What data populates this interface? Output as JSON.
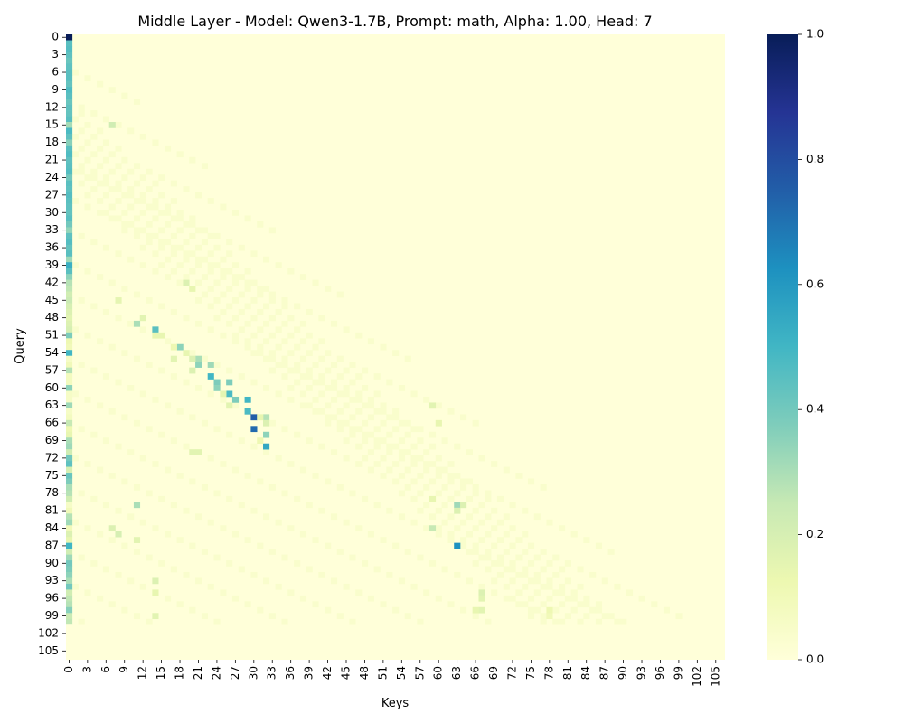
{
  "chart_data": {
    "type": "heatmap",
    "title": "Middle Layer - Model: Qwen3-1.7B, Prompt: math, Alpha: 1.00, Head: 7",
    "xlabel": "Keys",
    "ylabel": "Query",
    "rows": 107,
    "cols": 107,
    "x_tick_labels": [
      "0",
      "3",
      "6",
      "9",
      "12",
      "15",
      "18",
      "21",
      "24",
      "27",
      "30",
      "33",
      "36",
      "39",
      "42",
      "45",
      "48",
      "51",
      "54",
      "57",
      "60",
      "63",
      "66",
      "69",
      "72",
      "75",
      "78",
      "81",
      "84",
      "87",
      "90",
      "93",
      "96",
      "99",
      "102",
      "105"
    ],
    "y_tick_labels": [
      "0",
      "3",
      "6",
      "9",
      "12",
      "15",
      "18",
      "21",
      "24",
      "27",
      "30",
      "33",
      "36",
      "39",
      "42",
      "45",
      "48",
      "51",
      "54",
      "57",
      "60",
      "63",
      "66",
      "69",
      "72",
      "75",
      "78",
      "81",
      "84",
      "87",
      "90",
      "93",
      "96",
      "99",
      "102",
      "105"
    ],
    "colorbar": {
      "vmin": 0.0,
      "vmax": 1.0,
      "tick_labels": [
        "0.0",
        "0.2",
        "0.4",
        "0.6",
        "0.8",
        "1.0"
      ],
      "colormap": "YlGnBu",
      "color_stops": [
        "#ffffd9",
        "#edf8b1",
        "#c7e9b4",
        "#7fcdbb",
        "#41b6c4",
        "#1d91c0",
        "#225ea8",
        "#253494",
        "#081d58"
      ]
    },
    "column0_values": [
      1.0,
      0.45,
      0.46,
      0.44,
      0.42,
      0.44,
      0.45,
      0.45,
      0.43,
      0.47,
      0.45,
      0.42,
      0.44,
      0.43,
      0.45,
      0.31,
      0.48,
      0.44,
      0.36,
      0.45,
      0.47,
      0.44,
      0.45,
      0.46,
      0.4,
      0.45,
      0.44,
      0.46,
      0.45,
      0.44,
      0.43,
      0.45,
      0.4,
      0.34,
      0.44,
      0.46,
      0.43,
      0.45,
      0.32,
      0.52,
      0.45,
      0.35,
      0.28,
      0.26,
      0.22,
      0.24,
      0.2,
      0.18,
      0.16,
      0.18,
      0.2,
      0.38,
      0.12,
      0.1,
      0.5,
      0.06,
      0.1,
      0.28,
      0.08,
      0.08,
      0.35,
      0.06,
      0.06,
      0.32,
      0.06,
      0.08,
      0.25,
      0.12,
      0.14,
      0.3,
      0.32,
      0.22,
      0.4,
      0.44,
      0.2,
      0.42,
      0.38,
      0.3,
      0.28,
      0.22,
      0.06,
      0.1,
      0.28,
      0.32,
      0.1,
      0.18,
      0.14,
      0.5,
      0.22,
      0.32,
      0.4,
      0.38,
      0.35,
      0.3,
      0.4,
      0.22,
      0.26,
      0.28,
      0.36,
      0.24,
      0.26,
      0.0,
      0.0,
      0.0,
      0.0,
      0.0,
      0.0
    ],
    "highlighted_cells": [
      {
        "query": 49,
        "key": 11,
        "value": 0.3
      },
      {
        "query": 50,
        "key": 14,
        "value": 0.45
      },
      {
        "query": 53,
        "key": 18,
        "value": 0.35
      },
      {
        "query": 55,
        "key": 21,
        "value": 0.3
      },
      {
        "query": 56,
        "key": 21,
        "value": 0.35
      },
      {
        "query": 56,
        "key": 23,
        "value": 0.32
      },
      {
        "query": 58,
        "key": 23,
        "value": 0.5
      },
      {
        "query": 59,
        "key": 24,
        "value": 0.38
      },
      {
        "query": 59,
        "key": 26,
        "value": 0.38
      },
      {
        "query": 60,
        "key": 24,
        "value": 0.35
      },
      {
        "query": 61,
        "key": 26,
        "value": 0.48
      },
      {
        "query": 62,
        "key": 27,
        "value": 0.38
      },
      {
        "query": 62,
        "key": 29,
        "value": 0.5
      },
      {
        "query": 64,
        "key": 29,
        "value": 0.48
      },
      {
        "query": 65,
        "key": 30,
        "value": 0.75
      },
      {
        "query": 65,
        "key": 32,
        "value": 0.28
      },
      {
        "query": 67,
        "key": 30,
        "value": 0.72
      },
      {
        "query": 68,
        "key": 32,
        "value": 0.35
      },
      {
        "query": 70,
        "key": 32,
        "value": 0.55
      },
      {
        "query": 80,
        "key": 11,
        "value": 0.3
      },
      {
        "query": 80,
        "key": 63,
        "value": 0.32
      },
      {
        "query": 84,
        "key": 59,
        "value": 0.25
      },
      {
        "query": 87,
        "key": 63,
        "value": 0.62
      },
      {
        "query": 15,
        "key": 7,
        "value": 0.22
      },
      {
        "query": 85,
        "key": 8,
        "value": 0.2
      },
      {
        "query": 84,
        "key": 7,
        "value": 0.18
      },
      {
        "query": 42,
        "key": 19,
        "value": 0.18
      },
      {
        "query": 43,
        "key": 20,
        "value": 0.14
      },
      {
        "query": 45,
        "key": 8,
        "value": 0.15
      },
      {
        "query": 48,
        "key": 12,
        "value": 0.16
      },
      {
        "query": 51,
        "key": 14,
        "value": 0.14
      },
      {
        "query": 51,
        "key": 15,
        "value": 0.14
      },
      {
        "query": 53,
        "key": 17,
        "value": 0.12
      },
      {
        "query": 54,
        "key": 19,
        "value": 0.14
      },
      {
        "query": 55,
        "key": 17,
        "value": 0.16
      },
      {
        "query": 55,
        "key": 20,
        "value": 0.18
      },
      {
        "query": 57,
        "key": 20,
        "value": 0.18
      },
      {
        "query": 61,
        "key": 25,
        "value": 0.15
      },
      {
        "query": 63,
        "key": 26,
        "value": 0.16
      },
      {
        "query": 65,
        "key": 31,
        "value": 0.14
      },
      {
        "query": 66,
        "key": 32,
        "value": 0.18
      },
      {
        "query": 69,
        "key": 31,
        "value": 0.12
      },
      {
        "query": 71,
        "key": 20,
        "value": 0.16
      },
      {
        "query": 71,
        "key": 21,
        "value": 0.16
      },
      {
        "query": 63,
        "key": 59,
        "value": 0.16
      },
      {
        "query": 66,
        "key": 60,
        "value": 0.14
      },
      {
        "query": 79,
        "key": 59,
        "value": 0.14
      },
      {
        "query": 80,
        "key": 64,
        "value": 0.18
      },
      {
        "query": 81,
        "key": 63,
        "value": 0.18
      },
      {
        "query": 86,
        "key": 11,
        "value": 0.16
      },
      {
        "query": 93,
        "key": 14,
        "value": 0.18
      },
      {
        "query": 95,
        "key": 14,
        "value": 0.14
      },
      {
        "query": 95,
        "key": 67,
        "value": 0.18
      },
      {
        "query": 96,
        "key": 67,
        "value": 0.16
      },
      {
        "query": 98,
        "key": 67,
        "value": 0.16
      },
      {
        "query": 98,
        "key": 66,
        "value": 0.14
      },
      {
        "query": 99,
        "key": 14,
        "value": 0.16
      },
      {
        "query": 98,
        "key": 78,
        "value": 0.12
      },
      {
        "query": 99,
        "key": 78,
        "value": 0.1
      }
    ],
    "background_value": 0.0,
    "faint_value": 0.04,
    "grid": false
  }
}
